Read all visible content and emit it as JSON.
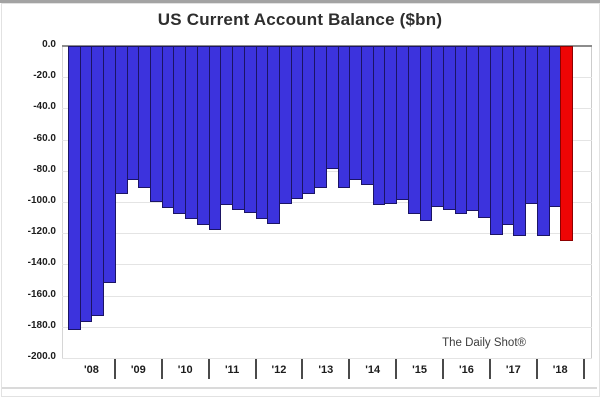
{
  "window": {
    "title": "US Current Account Balance ($bn)"
  },
  "chart": {
    "title": "US Current Account Balance ($bn)",
    "attribution": "The Daily Shot®",
    "colors": {
      "bar_fill": "#3c33dd",
      "bar_edge": "#1b1464",
      "highlight_fill": "#ee0505",
      "highlight_edge": "#8e0000",
      "grid": "#e4e4e4",
      "zero_line": "#8c8c8c",
      "axis_text": "#1c1c1c",
      "title_text": "#2e2e2e"
    }
  },
  "chart_data": {
    "type": "bar",
    "title": "US Current Account Balance ($bn)",
    "ylabel": "",
    "xlabel": "",
    "unit": "$bn",
    "ylim": [
      -200,
      0
    ],
    "grid": true,
    "legend": false,
    "yticks": [
      "0.0",
      "-20.0",
      "-40.0",
      "-60.0",
      "-80.0",
      "-100.0",
      "-120.0",
      "-140.0",
      "-160.0",
      "-180.0",
      "-200.0"
    ],
    "year_labels": [
      "'08",
      "'09",
      "'10",
      "'11",
      "'12",
      "'13",
      "'14",
      "'15",
      "'16",
      "'17",
      "'18"
    ],
    "bars_per_year": [
      4,
      4,
      4,
      4,
      4,
      4,
      4,
      4,
      4,
      4,
      3
    ],
    "slots_per_year": [
      4,
      4,
      4,
      4,
      4,
      4,
      4,
      4,
      4,
      4,
      4
    ],
    "x": [
      "2008 Q1",
      "2008 Q2",
      "2008 Q3",
      "2008 Q4",
      "2009 Q1",
      "2009 Q2",
      "2009 Q3",
      "2009 Q4",
      "2010 Q1",
      "2010 Q2",
      "2010 Q3",
      "2010 Q4",
      "2011 Q1",
      "2011 Q2",
      "2011 Q3",
      "2011 Q4",
      "2012 Q1",
      "2012 Q2",
      "2012 Q3",
      "2012 Q4",
      "2013 Q1",
      "2013 Q2",
      "2013 Q3",
      "2013 Q4",
      "2014 Q1",
      "2014 Q2",
      "2014 Q3",
      "2014 Q4",
      "2015 Q1",
      "2015 Q2",
      "2015 Q3",
      "2015 Q4",
      "2016 Q1",
      "2016 Q2",
      "2016 Q3",
      "2016 Q4",
      "2017 Q1",
      "2017 Q2",
      "2017 Q3",
      "2017 Q4",
      "2018 Q1",
      "2018 Q2",
      "2018 Q3"
    ],
    "values": [
      -182,
      -177,
      -173,
      -152,
      -95,
      -86,
      -91,
      -100,
      -104,
      -108,
      -111,
      -115,
      -118,
      -102,
      -105,
      -107,
      -111,
      -114,
      -101,
      -98,
      -95,
      -91,
      -79,
      -91,
      -86,
      -89,
      -102,
      -101,
      -99,
      -108,
      -112,
      -103,
      -105,
      -108,
      -106,
      -110,
      -121,
      -115,
      -122,
      -101,
      -122,
      -103,
      -125
    ],
    "highlight_index": 42,
    "annotations": [
      "The Daily Shot®"
    ]
  }
}
